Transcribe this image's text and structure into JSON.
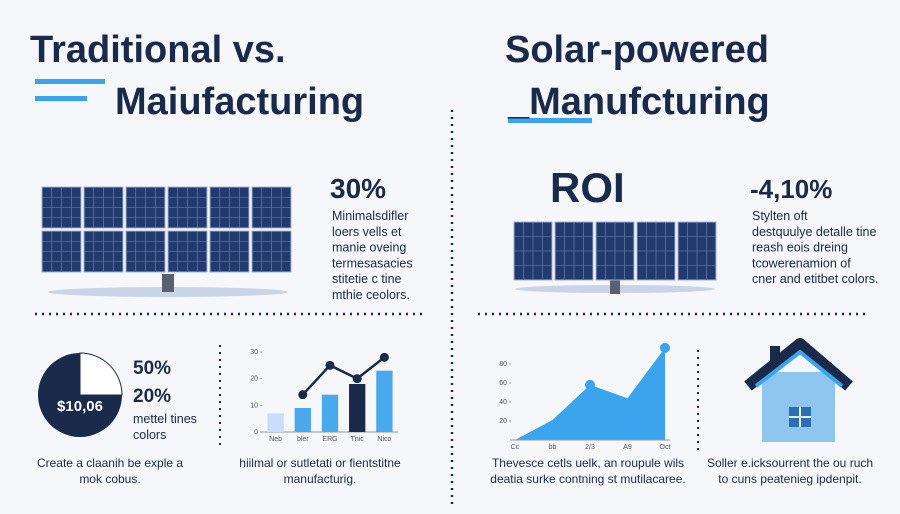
{
  "left": {
    "title": [
      "Traditional vs.",
      "Maiufacturing"
    ],
    "stat": "30%",
    "lines": [
      "Minimalsdifler",
      "loers vells et",
      "manie oveing",
      "termesasacies",
      "stitetie c tine",
      "mthie ceolors."
    ]
  },
  "right": {
    "title": [
      "Solar-powered",
      "_Manufcturing"
    ],
    "roi": "ROI",
    "stat": "-4,10%",
    "lines": [
      "Stylten oft",
      "destquulye detalle tine",
      "reash eois dreing",
      "tcowerenamion of",
      "cner and etitbet colors."
    ]
  },
  "pie_panel": {
    "center_label": "$10,06",
    "stats": [
      "50%",
      "20%"
    ],
    "note": [
      "mettel tines",
      "colors"
    ],
    "caption": [
      "Create a claanih be exple a",
      "mok cobus."
    ]
  },
  "bar_chart": {
    "type": "bar",
    "categories": [
      "Neb",
      "bler",
      "ERG",
      "Tnic",
      "Nico"
    ],
    "values": [
      7,
      9,
      14,
      18,
      23
    ],
    "line_values": [
      null,
      14,
      25,
      20,
      28
    ],
    "ylim": [
      0,
      30
    ],
    "yticks": [
      0,
      10,
      20,
      30
    ],
    "bar_color": "#4aa8ec",
    "line_color": "#1a2a4a",
    "caption": [
      "hiilmal or sutletati or fientstitne",
      "manufacturig."
    ]
  },
  "area_chart": {
    "type": "area",
    "categories": [
      "Cc",
      "bb",
      "2/3",
      "A9",
      "Oct"
    ],
    "values": [
      0,
      21,
      58,
      44,
      97
    ],
    "ylim": [
      0,
      100
    ],
    "yticks": [
      20,
      40,
      60,
      80
    ],
    "color": "#3aa4ee",
    "caption": [
      "Thevesce cetls uelk, an roupule wils",
      "deatia surke contning st mutilacaree."
    ]
  },
  "house_panel": {
    "caption": [
      "Soller e.icksourrent the ou ruch",
      "to cuns peatenieg ipdenpit."
    ]
  }
}
